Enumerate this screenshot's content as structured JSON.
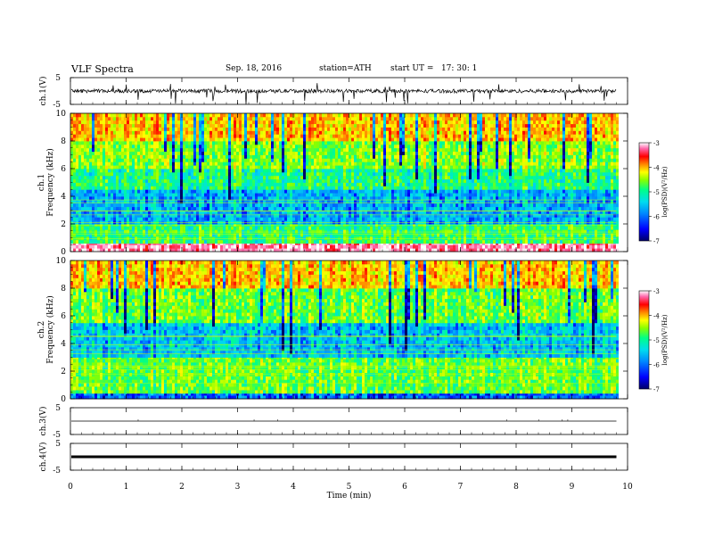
{
  "header": {
    "title": "VLF Spectra",
    "date": "Sep. 18, 2016",
    "station": "station=ATH",
    "start": "start UT =   17: 30: 1"
  },
  "colors": {
    "colormap": [
      "#000066",
      "#0000ff",
      "#0088ff",
      "#00ddee",
      "#00ff88",
      "#88ff00",
      "#ffff00",
      "#ff8800",
      "#ff0000",
      "#ff66aa",
      "#ffffff"
    ],
    "trace": "#000000"
  },
  "chart_data": [
    {
      "type": "line",
      "panel": "ch1",
      "ylabel": "ch.1(V)",
      "ylim": [
        -5,
        5
      ],
      "yticks": [
        "5",
        "-5"
      ],
      "baseline": 0,
      "note": "broadband waveform with frequent negative spikes"
    },
    {
      "type": "heatmap",
      "panel": "ch1-spectrogram",
      "ylabel_outer": "ch.1",
      "ylabel": "Frequency (kHz)",
      "ylim": [
        0,
        10
      ],
      "yticks": [
        "0",
        "2",
        "4",
        "6",
        "8",
        "10"
      ],
      "colorbar": {
        "label": "log(PSD)(V²/Hz)",
        "range": [
          -7,
          -3
        ],
        "ticks": [
          "-3",
          "-4",
          "-5",
          "-6",
          "-7"
        ]
      },
      "bands": [
        {
          "fmin": 0.0,
          "fmax": 0.6,
          "level": -3.3
        },
        {
          "fmin": 0.6,
          "fmax": 2.0,
          "level": -5.3
        },
        {
          "fmin": 2.0,
          "fmax": 4.5,
          "level": -6.0
        },
        {
          "fmin": 4.5,
          "fmax": 6.0,
          "level": -5.4
        },
        {
          "fmin": 6.0,
          "fmax": 8.0,
          "level": -5.0
        },
        {
          "fmin": 8.0,
          "fmax": 10.0,
          "level": -4.4
        }
      ]
    },
    {
      "type": "heatmap",
      "panel": "ch2-spectrogram",
      "ylabel_outer": "ch.2",
      "ylabel": "Frequency (kHz)",
      "ylim": [
        0,
        10
      ],
      "yticks": [
        "0",
        "2",
        "4",
        "6",
        "8",
        "10"
      ],
      "colorbar": {
        "label": "log(PSD)(V²/Hz)",
        "range": [
          -7,
          -3
        ],
        "ticks": [
          "-3",
          "-4",
          "-5",
          "-6",
          "-7"
        ]
      },
      "bands": [
        {
          "fmin": 0.0,
          "fmax": 0.4,
          "level": -6.3
        },
        {
          "fmin": 0.4,
          "fmax": 3.0,
          "level": -5.1
        },
        {
          "fmin": 3.0,
          "fmax": 5.5,
          "level": -5.9
        },
        {
          "fmin": 5.5,
          "fmax": 8.0,
          "level": -5.1
        },
        {
          "fmin": 8.0,
          "fmax": 10.0,
          "level": -4.4
        }
      ]
    },
    {
      "type": "line",
      "panel": "ch3",
      "ylabel": "ch.3(V)",
      "ylim": [
        -5,
        5
      ],
      "yticks": [
        "5",
        "-5"
      ],
      "baseline": 0,
      "note": "flat line"
    },
    {
      "type": "line",
      "panel": "ch4",
      "ylabel": "ch.4(V)",
      "ylim": [
        -5,
        5
      ],
      "yticks": [
        "5",
        "-5"
      ],
      "baseline": 0,
      "note": "thick flat band near zero"
    }
  ],
  "xaxis": {
    "label": "Time (min)",
    "range": [
      0,
      10
    ],
    "data_end": 9.8,
    "ticks": [
      "0",
      "1",
      "2",
      "3",
      "4",
      "5",
      "6",
      "7",
      "8",
      "9",
      "10"
    ]
  }
}
